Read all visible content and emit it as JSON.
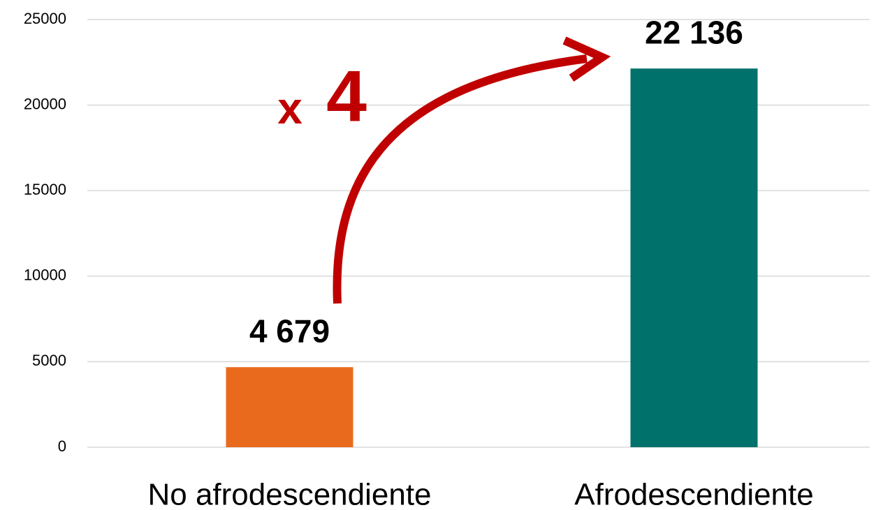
{
  "chart_data": {
    "type": "bar",
    "categories": [
      "No afrodescendiente",
      "Afrodescendiente"
    ],
    "values": [
      4679,
      22136
    ],
    "value_labels": [
      "4 679",
      "22 136"
    ],
    "colors": [
      "#e96a1c",
      "#00716b"
    ],
    "ylim": [
      0,
      25000
    ],
    "yticks": [
      0,
      5000,
      10000,
      15000,
      20000,
      25000
    ],
    "grid": true,
    "annotation": [
      "x",
      "4"
    ]
  }
}
